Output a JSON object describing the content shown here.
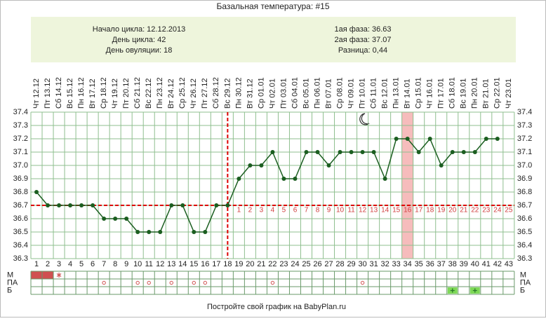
{
  "chart_data": {
    "type": "line",
    "title": "Базальная температура: #15",
    "info_left": [
      "Начало цикла: 12.12.2013",
      "День цикла: 42",
      "День овуляции: 18"
    ],
    "info_right": [
      "1ая фаза: 36.63",
      "2ая фаза: 37.07",
      "Разница: 0,44"
    ],
    "categories": [
      "Чт 12.12",
      "Пт 13.12",
      "Сб 14.12",
      "Вс 15.12",
      "Пн 16.12",
      "Вт 17.12",
      "Ср 18.12",
      "Чт 19.12",
      "Пт 20.12",
      "Сб 21.12",
      "Вс 22.12",
      "Пн 23.12",
      "Вт 24.12",
      "Ср 25.12",
      "Чт 26.12",
      "Пт 27.12",
      "Сб 28.12",
      "Вс 29.12",
      "Пн 30.12",
      "Вт 31.12",
      "Ср 01.01",
      "Чт 02.01",
      "Пт 03.01",
      "Сб 04.01",
      "Вс 05.01",
      "Пн 06.01",
      "Вт 07.01",
      "Ср 08.01",
      "Чт 09.01",
      "Пт 10.01",
      "Сб 11.01",
      "Вс 12.01",
      "Пн 13.01",
      "Вт 14.01",
      "Ср 15.01",
      "Чт 16.01",
      "Пт 17.01",
      "Сб 18.01",
      "Вс 19.01",
      "Пн 20.01",
      "Вт 21.01",
      "Ср 22.01",
      "Чт 23.01"
    ],
    "days": [
      1,
      2,
      3,
      4,
      5,
      6,
      7,
      8,
      9,
      10,
      11,
      12,
      13,
      14,
      15,
      16,
      17,
      18,
      19,
      20,
      21,
      22,
      23,
      24,
      25,
      26,
      27,
      28,
      29,
      30,
      31,
      32,
      33,
      34,
      35,
      36,
      37,
      38,
      39,
      40,
      41,
      42,
      43
    ],
    "values": [
      36.8,
      36.7,
      36.7,
      36.7,
      36.7,
      36.7,
      36.6,
      36.6,
      36.6,
      36.5,
      36.5,
      36.5,
      36.7,
      36.7,
      36.5,
      36.5,
      36.7,
      36.7,
      36.9,
      37.0,
      37.0,
      37.1,
      36.9,
      36.9,
      37.1,
      37.1,
      37.0,
      37.1,
      37.1,
      37.1,
      37.1,
      36.9,
      37.2,
      37.2,
      37.1,
      37.2,
      37.0,
      37.1,
      37.1,
      37.1,
      37.2,
      37.2,
      null
    ],
    "color": "#1b5e20",
    "ylim": [
      36.3,
      37.4
    ],
    "yticks": [
      36.3,
      36.4,
      36.5,
      36.6,
      {
        "value": 36.7,
        "label": "36.7"
      },
      36.8,
      36.9,
      {
        "value": 37,
        "label": "37.0"
      },
      37.1,
      37.2,
      37.3,
      37.4
    ],
    "cover_line": 36.7,
    "ovulation_day": 18,
    "highlight_day": 34,
    "luteal_days": [
      1,
      2,
      3,
      4,
      5,
      6,
      7,
      8,
      9,
      10,
      11,
      12,
      13,
      14,
      15,
      16,
      17,
      18,
      19,
      20,
      21,
      22,
      23,
      24,
      25
    ],
    "symptoms": [
      {
        "label": "М",
        "filled": [
          1,
          2
        ],
        "star": [
          3
        ]
      },
      {
        "label": "ПА",
        "circles": [
          7,
          10,
          11,
          13,
          15,
          16,
          22,
          30
        ]
      },
      {
        "label": "Б",
        "plus": [
          38,
          40
        ]
      }
    ],
    "footer": "Постройте свой график на BabyPlan.ru"
  }
}
